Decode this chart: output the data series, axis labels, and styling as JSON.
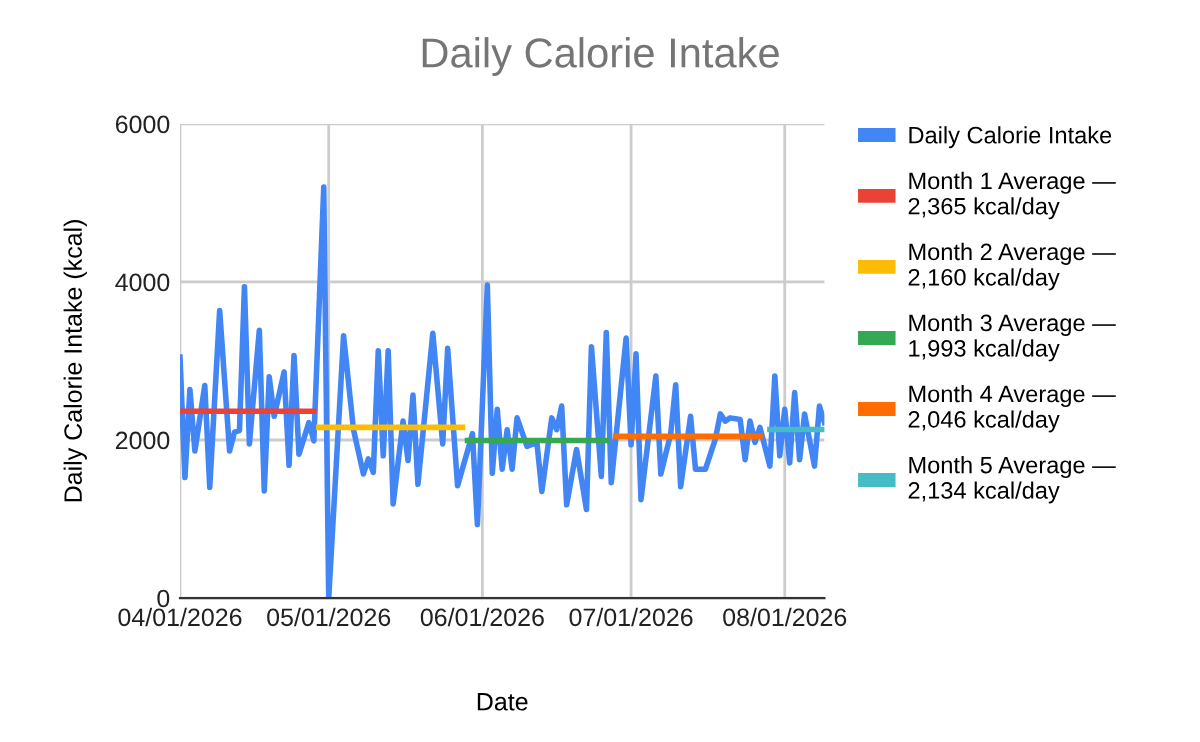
{
  "chart_data": {
    "type": "line",
    "title": "Daily Calorie Intake",
    "xlabel": "Date",
    "ylabel": "Daily Calorie Intake (kcal)",
    "xlim": [
      "2026-04-01",
      "2026-08-09"
    ],
    "xticks": [
      {
        "value": "2026-04-01",
        "label": "04/01/2026"
      },
      {
        "value": "2026-05-01",
        "label": "05/01/2026"
      },
      {
        "value": "2026-06-01",
        "label": "06/01/2026"
      },
      {
        "value": "2026-07-01",
        "label": "07/01/2026"
      },
      {
        "value": "2026-08-01",
        "label": "08/01/2026"
      }
    ],
    "ylim": [
      0,
      6000
    ],
    "yticks": [
      0,
      2000,
      4000,
      6000
    ],
    "grid": true,
    "legend": "right",
    "series": [
      {
        "name": "Daily Calorie Intake",
        "color": "#4285f4",
        "x": [
          "2026-04-01",
          "2026-04-02",
          "2026-04-03",
          "2026-04-04",
          "2026-04-06",
          "2026-04-07",
          "2026-04-09",
          "2026-04-11",
          "2026-04-12",
          "2026-04-13",
          "2026-04-14",
          "2026-04-15",
          "2026-04-17",
          "2026-04-18",
          "2026-04-19",
          "2026-04-20",
          "2026-04-22",
          "2026-04-23",
          "2026-04-24",
          "2026-04-25",
          "2026-04-27",
          "2026-04-28",
          "2026-04-30",
          "2026-05-01",
          "2026-05-04",
          "2026-05-06",
          "2026-05-08",
          "2026-05-09",
          "2026-05-10",
          "2026-05-11",
          "2026-05-12",
          "2026-05-13",
          "2026-05-14",
          "2026-05-16",
          "2026-05-17",
          "2026-05-18",
          "2026-05-19",
          "2026-05-22",
          "2026-05-24",
          "2026-05-25",
          "2026-05-27",
          "2026-05-30",
          "2026-05-31",
          "2026-06-02",
          "2026-06-03",
          "2026-06-04",
          "2026-06-05",
          "2026-06-06",
          "2026-06-07",
          "2026-06-08",
          "2026-06-10",
          "2026-06-12",
          "2026-06-13",
          "2026-06-15",
          "2026-06-16",
          "2026-06-17",
          "2026-06-18",
          "2026-06-20",
          "2026-06-22",
          "2026-06-23",
          "2026-06-25",
          "2026-06-26",
          "2026-06-27",
          "2026-06-30",
          "2026-07-01",
          "2026-07-02",
          "2026-07-03",
          "2026-07-06",
          "2026-07-07",
          "2026-07-09",
          "2026-07-10",
          "2026-07-11",
          "2026-07-13",
          "2026-07-14",
          "2026-07-16",
          "2026-07-18",
          "2026-07-19",
          "2026-07-20",
          "2026-07-21",
          "2026-07-23",
          "2026-07-24",
          "2026-07-25",
          "2026-07-26",
          "2026-07-27",
          "2026-07-29",
          "2026-07-30",
          "2026-07-31",
          "2026-08-01",
          "2026-08-02",
          "2026-08-03",
          "2026-08-04",
          "2026-08-05",
          "2026-08-07",
          "2026-08-08",
          "2026-08-09"
        ],
        "values": [
          3050,
          1525,
          2640,
          1860,
          2690,
          1400,
          3640,
          1860,
          2100,
          2120,
          3940,
          1950,
          3390,
          1355,
          2800,
          2300,
          2860,
          1680,
          3070,
          1820,
          2220,
          1990,
          5200,
          0,
          3320,
          2130,
          1570,
          1760,
          1590,
          3130,
          1800,
          3130,
          1190,
          2240,
          1740,
          2570,
          1440,
          3350,
          1950,
          3160,
          1420,
          2080,
          930,
          3960,
          1580,
          2390,
          1630,
          2130,
          1630,
          2280,
          1920,
          1970,
          1350,
          2280,
          2130,
          2430,
          1180,
          1880,
          1120,
          3180,
          1540,
          3360,
          1460,
          3290,
          1940,
          3090,
          1245,
          2810,
          1570,
          2080,
          2700,
          1410,
          2300,
          1630,
          1630,
          2010,
          2330,
          2240,
          2280,
          2260,
          1750,
          2240,
          1970,
          2160,
          1670,
          2810,
          1800,
          2390,
          1710,
          2600,
          1750,
          2330,
          1670,
          2430,
          2220
        ]
      },
      {
        "name": "Month 1 Average —\n2,365 kcal/day",
        "color": "#ea4335",
        "x": [
          "2026-04-01",
          "2026-04-28"
        ],
        "values": [
          2365,
          2365
        ]
      },
      {
        "name": "Month 2 Average —\n2,160 kcal/day",
        "color": "#fbbc04",
        "x": [
          "2026-04-29",
          "2026-05-28"
        ],
        "values": [
          2160,
          2160
        ]
      },
      {
        "name": "Month 3 Average —\n1,993 kcal/day",
        "color": "#34a853",
        "x": [
          "2026-05-29",
          "2026-06-26"
        ],
        "values": [
          1993,
          1993
        ]
      },
      {
        "name": "Month 4 Average —\n2,046 kcal/day",
        "color": "#ff6d01",
        "x": [
          "2026-06-28",
          "2026-07-27"
        ],
        "values": [
          2046,
          2046
        ]
      },
      {
        "name": "Month 5 Average —\n2,134 kcal/day",
        "color": "#46bdc6",
        "x": [
          "2026-07-29",
          "2026-08-09"
        ],
        "values": [
          2134,
          2134
        ]
      }
    ]
  }
}
